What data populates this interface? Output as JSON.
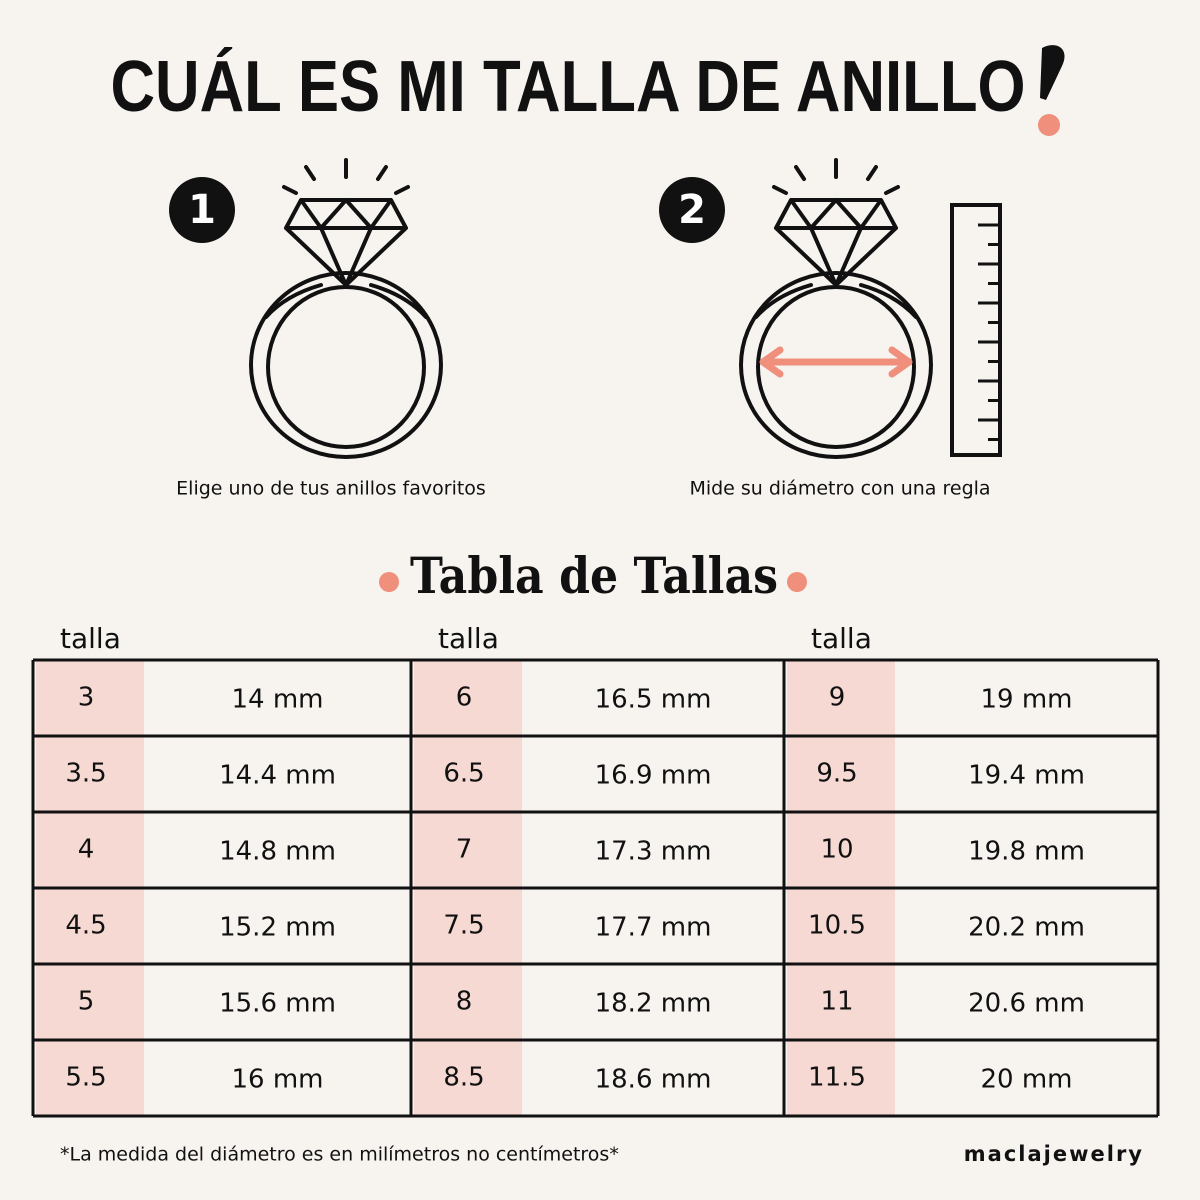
{
  "header": {
    "title": "CUÁL ES MI TALLA DE ANILLO"
  },
  "steps": [
    {
      "number": "1",
      "caption": "Elige uno de tus anillos favoritos"
    },
    {
      "number": "2",
      "caption": "Mide su diámetro con una regla"
    }
  ],
  "table": {
    "title": "Tabla de Tallas",
    "groups": [
      {
        "header": "talla",
        "rows": [
          [
            "3",
            "14 mm"
          ],
          [
            "3.5",
            "14.4 mm"
          ],
          [
            "4",
            "14.8 mm"
          ],
          [
            "4.5",
            "15.2 mm"
          ],
          [
            "5",
            "15.6 mm"
          ],
          [
            "5.5",
            "16 mm"
          ]
        ]
      },
      {
        "header": "talla",
        "rows": [
          [
            "6",
            "16.5 mm"
          ],
          [
            "6.5",
            "16.9 mm"
          ],
          [
            "7",
            "17.3 mm"
          ],
          [
            "7.5",
            "17.7 mm"
          ],
          [
            "8",
            "18.2 mm"
          ],
          [
            "8.5",
            "18.6 mm"
          ]
        ]
      },
      {
        "header": "talla",
        "rows": [
          [
            "9",
            "19 mm"
          ],
          [
            "9.5",
            "19.4 mm"
          ],
          [
            "10",
            "19.8 mm"
          ],
          [
            "10.5",
            "20.2 mm"
          ],
          [
            "11",
            "20.6 mm"
          ],
          [
            "11.5",
            "20 mm"
          ]
        ]
      }
    ]
  },
  "footer": {
    "note": "*La medida del diámetro es en milímetros no centímetros*",
    "brand": "maclajewelry"
  }
}
